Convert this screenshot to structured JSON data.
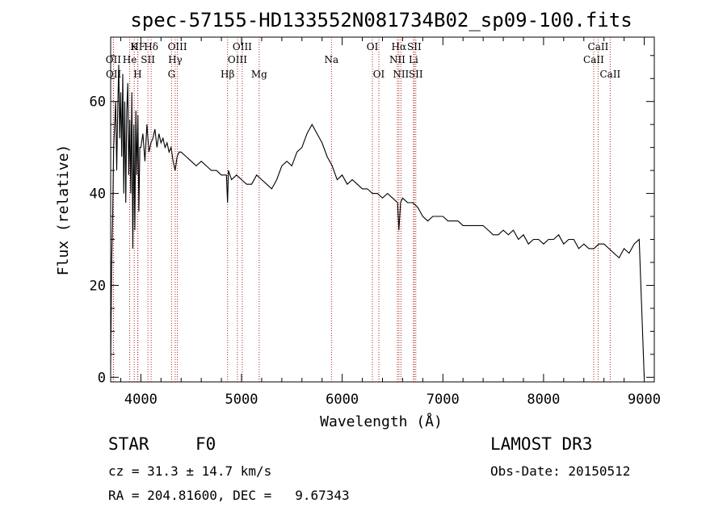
{
  "chart_data": {
    "type": "line",
    "title": "spec-57155-HD133552N081734B02_sp09-100.fits",
    "xlabel": "Wavelength (Å)",
    "ylabel": "Flux (relative)",
    "xlim": [
      3700,
      9100
    ],
    "ylim": [
      -1,
      74
    ],
    "x_ticks": [
      4000,
      5000,
      6000,
      7000,
      8000,
      9000
    ],
    "y_ticks": [
      0,
      20,
      40,
      60
    ],
    "grid": false,
    "series": [
      {
        "name": "flux",
        "color": "#000000",
        "x": [
          3700,
          3710,
          3720,
          3730,
          3740,
          3750,
          3760,
          3770,
          3780,
          3790,
          3800,
          3810,
          3820,
          3830,
          3840,
          3850,
          3860,
          3870,
          3880,
          3890,
          3900,
          3910,
          3920,
          3930,
          3940,
          3950,
          3960,
          3970,
          3980,
          3990,
          4000,
          4020,
          4040,
          4060,
          4080,
          4100,
          4120,
          4140,
          4160,
          4180,
          4200,
          4220,
          4240,
          4260,
          4280,
          4300,
          4320,
          4340,
          4360,
          4380,
          4400,
          4450,
          4500,
          4550,
          4600,
          4650,
          4700,
          4750,
          4800,
          4850,
          4861,
          4870,
          4900,
          4950,
          5000,
          5050,
          5100,
          5150,
          5200,
          5250,
          5300,
          5350,
          5400,
          5450,
          5500,
          5550,
          5600,
          5650,
          5700,
          5750,
          5800,
          5850,
          5900,
          5950,
          6000,
          6050,
          6100,
          6150,
          6200,
          6250,
          6300,
          6350,
          6400,
          6450,
          6500,
          6550,
          6563,
          6580,
          6600,
          6650,
          6700,
          6750,
          6800,
          6850,
          6900,
          6950,
          7000,
          7050,
          7100,
          7150,
          7200,
          7250,
          7300,
          7350,
          7400,
          7450,
          7500,
          7550,
          7600,
          7650,
          7700,
          7750,
          7800,
          7850,
          7900,
          7950,
          8000,
          8050,
          8100,
          8150,
          8200,
          8250,
          8300,
          8350,
          8400,
          8450,
          8500,
          8550,
          8600,
          8650,
          8700,
          8750,
          8800,
          8850,
          8900,
          8950,
          9000
        ],
        "y": [
          3,
          25,
          35,
          50,
          55,
          60,
          45,
          58,
          68,
          52,
          62,
          48,
          66,
          40,
          60,
          38,
          58,
          64,
          44,
          56,
          40,
          62,
          28,
          55,
          32,
          58,
          44,
          57,
          36,
          50,
          50,
          53,
          47,
          55,
          49,
          51,
          52,
          54,
          50,
          53,
          51,
          52,
          50,
          51,
          49,
          50,
          47,
          45,
          48,
          49,
          49,
          48,
          47,
          46,
          47,
          46,
          45,
          45,
          44,
          44,
          38,
          45,
          43,
          44,
          43,
          42,
          42,
          44,
          43,
          42,
          41,
          43,
          46,
          47,
          46,
          49,
          50,
          53,
          55,
          53,
          51,
          48,
          46,
          43,
          44,
          42,
          43,
          42,
          41,
          41,
          40,
          40,
          39,
          40,
          39,
          38,
          32,
          38,
          39,
          38,
          38,
          37,
          35,
          34,
          35,
          35,
          35,
          34,
          34,
          34,
          33,
          33,
          33,
          33,
          33,
          32,
          31,
          31,
          32,
          31,
          32,
          30,
          31,
          29,
          30,
          30,
          29,
          30,
          30,
          31,
          29,
          30,
          30,
          28,
          29,
          28,
          28,
          29,
          29,
          28,
          27,
          26,
          28,
          27,
          29,
          30,
          0
        ]
      }
    ],
    "line_markers": [
      {
        "label": "HF",
        "x": 3970,
        "row": 1
      },
      {
        "label": "K",
        "x": 3934,
        "row": 1
      },
      {
        "label": "Hδ",
        "x": 4102,
        "row": 1
      },
      {
        "label": "OII",
        "x": 3727,
        "row": 2
      },
      {
        "label": "He",
        "x": 3889,
        "row": 2
      },
      {
        "label": "SII",
        "x": 4070,
        "row": 2
      },
      {
        "label": "OII",
        "x": 3729,
        "row": 3
      },
      {
        "label": "H",
        "x": 3968,
        "row": 3
      },
      {
        "label": "OIII",
        "x": 4363,
        "row": 1
      },
      {
        "label": "Hγ",
        "x": 4341,
        "row": 2
      },
      {
        "label": "G",
        "x": 4305,
        "row": 3
      },
      {
        "label": "OIII",
        "x": 5007,
        "row": 1
      },
      {
        "label": "OIII",
        "x": 4959,
        "row": 2
      },
      {
        "label": "Hβ",
        "x": 4861,
        "row": 3
      },
      {
        "label": "Mg",
        "x": 5175,
        "row": 3
      },
      {
        "label": "Na",
        "x": 5893,
        "row": 2
      },
      {
        "label": "OI",
        "x": 6300,
        "row": 1
      },
      {
        "label": "OI",
        "x": 6364,
        "row": 3
      },
      {
        "label": "Hα",
        "x": 6563,
        "row": 1
      },
      {
        "label": "SII",
        "x": 6716,
        "row": 1
      },
      {
        "label": "NII",
        "x": 6548,
        "row": 2
      },
      {
        "label": "Li",
        "x": 6708,
        "row": 2
      },
      {
        "label": "NII",
        "x": 6583,
        "row": 3
      },
      {
        "label": "SII",
        "x": 6731,
        "row": 3
      },
      {
        "label": "CaII",
        "x": 8542,
        "row": 1
      },
      {
        "label": "CaII",
        "x": 8498,
        "row": 2
      },
      {
        "label": "CaII",
        "x": 8662,
        "row": 3
      }
    ]
  },
  "info": {
    "object_class": "STAR",
    "subclass": "F0",
    "survey": "LAMOST DR3",
    "redshift_line": "cz = 31.3 ± 14.7 km/s",
    "obs_date": "Obs-Date: 20150512",
    "coords": "RA = 204.81600, DEC =   9.67343"
  }
}
